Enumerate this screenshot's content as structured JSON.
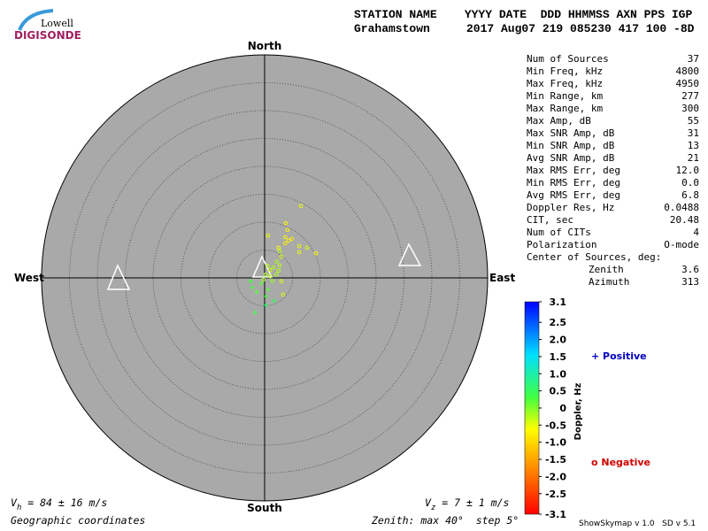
{
  "logo": {
    "top": "Lowell",
    "bottom": "DIGISONDE"
  },
  "header": {
    "labels": "STATION NAME    YYYY DATE  DDD HHMMSS AXN PPS IGP",
    "station": "Grahamstown",
    "values": "2017 Aug07 219 085230 417 100 -8D"
  },
  "stats": [
    [
      "Num of Sources",
      "37"
    ],
    [
      "Min Freq, kHz",
      "4800"
    ],
    [
      "Max Freq, kHz",
      "4950"
    ],
    [
      "Min Range, km",
      "277"
    ],
    [
      "Max Range, km",
      "300"
    ],
    [
      "Max Amp, dB",
      "55"
    ],
    [
      "Max SNR Amp, dB",
      "31"
    ],
    [
      "Min SNR Amp, dB",
      "13"
    ],
    [
      "Avg SNR Amp, dB",
      "21"
    ],
    [
      "Max RMS Err, deg",
      "12.0"
    ],
    [
      "Min RMS Err, deg",
      "0.0"
    ],
    [
      "Avg RMS Err, deg",
      "6.8"
    ],
    [
      "Doppler Res, Hz",
      "0.0488"
    ],
    [
      "CIT, sec",
      "20.48"
    ],
    [
      "Num of CITs",
      "4"
    ],
    [
      "Polarization",
      "O-mode"
    ]
  ],
  "center": {
    "title": "Center of Sources, deg:",
    "rows": [
      [
        "Zenith",
        "3.6"
      ],
      [
        "Azimuth",
        "313"
      ]
    ]
  },
  "chart_data": {
    "type": "skymap",
    "directions": {
      "north": "North",
      "south": "South",
      "east": "East",
      "west": "West"
    },
    "zlim": [
      0,
      40
    ],
    "zstep": 5,
    "x": [
      6.5,
      3.8,
      4.1,
      0.6,
      3.7,
      4.9,
      4.3,
      3.7,
      6.2,
      7.6,
      9.2,
      6.2,
      2.5,
      2.7,
      3.0,
      2.2,
      2.7,
      1.6,
      1.0,
      0.5,
      0.2,
      2.1,
      1.4,
      3.0,
      -0.6,
      -2.2,
      -1.4,
      0.2,
      1.7,
      0.2,
      -1.7,
      3.3,
      1.0,
      -0.2,
      -2.5,
      2.5,
      0.6
    ],
    "y": [
      12.9,
      9.8,
      8.6,
      7.6,
      7.3,
      7.0,
      6.7,
      6.2,
      5.7,
      5.4,
      4.4,
      4.6,
      5.4,
      4.8,
      3.8,
      2.9,
      2.2,
      1.9,
      1.4,
      2.2,
      0.6,
      0.6,
      -0.6,
      -0.6,
      -1.0,
      -1.7,
      -2.5,
      -3.3,
      -4.1,
      -4.9,
      -6.2,
      -3.0,
      0.3,
      -0.3,
      -0.6,
      1.3,
      -2.1
    ],
    "doppler": [
      -0.5,
      -0.7,
      -0.7,
      -0.5,
      -0.7,
      -0.8,
      -0.7,
      -0.7,
      -0.5,
      -0.5,
      -0.6,
      -0.5,
      -0.6,
      -0.3,
      -0.4,
      -0.2,
      -0.3,
      -0.2,
      -0.4,
      -0.3,
      -0.2,
      -0.2,
      -0.1,
      -0.4,
      0.2,
      0.3,
      0.2,
      0.3,
      0.5,
      0.6,
      0.4,
      -0.4,
      -0.3,
      -0.2,
      0.3,
      -0.3,
      0.2
    ],
    "colorbar": {
      "label": "Doppler, Hz",
      "lim": [
        -3.1,
        3.1
      ],
      "ticks": [
        3.1,
        2.5,
        2,
        1.5,
        1,
        0.5,
        0,
        -0.5,
        -1,
        -1.5,
        -2,
        -2.5,
        -3.1
      ],
      "tick_labels": [
        "3.1",
        "2.5",
        "2.0",
        "1.5",
        "1.0",
        "0.5",
        "0",
        "-0.5",
        "-1.0",
        "-1.5",
        "-2.0",
        "-2.5",
        "-3.1"
      ]
    },
    "positive": "Positive",
    "negative": "Negative"
  },
  "footer": {
    "vh_sym": "V",
    "vh_sub": "h",
    "vh_text": " = 84 ± 16 m/s",
    "vz_sym": "V",
    "vz_sub": "z",
    "vz_text": " = 7 ± 1 m/s",
    "coords": "Geographic coordinates",
    "zenith": "Zenith: max 40°  step 5°",
    "version": "ShowSkymap v 1.0   SD v 5.1"
  }
}
